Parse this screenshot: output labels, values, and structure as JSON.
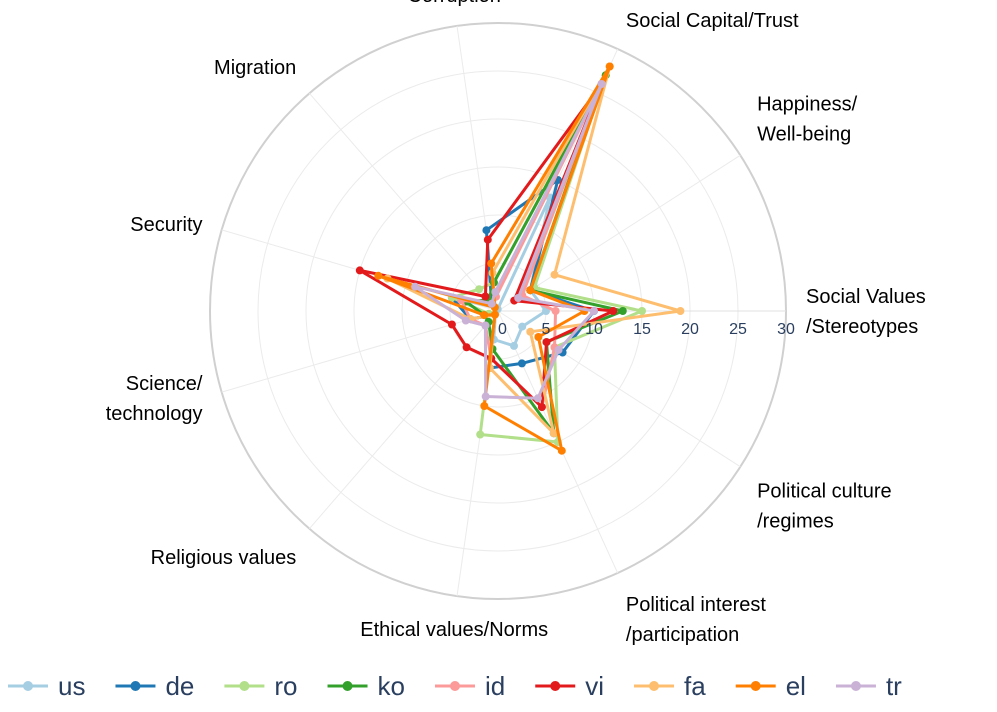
{
  "chart_data": {
    "type": "radar",
    "title": "",
    "axes": [
      {
        "name": "Social Values /Stereotypes",
        "lines": [
          "Social Values",
          "/Stereotypes"
        ]
      },
      {
        "name": "Happiness/ Well-being",
        "lines": [
          "Happiness/",
          "Well-being"
        ]
      },
      {
        "name": "Social Capital/Trust",
        "lines": [
          "Social Capital/Trust"
        ]
      },
      {
        "name": "Corruption",
        "lines": [
          "Corruption"
        ]
      },
      {
        "name": "Migration",
        "lines": [
          "Migration"
        ]
      },
      {
        "name": "Security",
        "lines": [
          "Security"
        ]
      },
      {
        "name": "Science/ technology",
        "lines": [
          "Science/",
          "technology"
        ]
      },
      {
        "name": "Religious values",
        "lines": [
          "Religious values"
        ]
      },
      {
        "name": "Ethical values/Norms",
        "lines": [
          "Ethical values/Norms"
        ]
      },
      {
        "name": "Political interest /participation",
        "lines": [
          "Political interest",
          "/participation"
        ]
      },
      {
        "name": "Political culture /regimes",
        "lines": [
          "Political culture",
          "/regimes"
        ]
      }
    ],
    "radial_range": [
      0,
      30
    ],
    "radial_ticks": [
      "0",
      "5",
      "10",
      "15",
      "20",
      "25",
      "30"
    ],
    "series": [
      {
        "name": "us",
        "color": "#a6cee3",
        "values": [
          5,
          4,
          13,
          0.2,
          0.5,
          5,
          3,
          0.5,
          3,
          4,
          3
        ]
      },
      {
        "name": "de",
        "color": "#1f78b4",
        "values": [
          10,
          4,
          15,
          8.5,
          1,
          5,
          3,
          0.5,
          6,
          6,
          8
        ]
      },
      {
        "name": "ro",
        "color": "#b2df8a",
        "values": [
          15,
          4.5,
          27,
          3,
          3,
          5,
          1,
          0.5,
          13,
          15,
          7
        ]
      },
      {
        "name": "ko",
        "color": "#33a02c",
        "values": [
          13,
          4,
          27,
          3,
          1.5,
          3.5,
          1.5,
          1.5,
          4,
          14,
          6
        ]
      },
      {
        "name": "id",
        "color": "#fb9a99",
        "values": [
          6,
          3,
          26,
          1.5,
          1,
          4,
          3,
          2,
          5,
          11,
          7
        ]
      },
      {
        "name": "vi",
        "color": "#e31a1c",
        "values": [
          12,
          2,
          26,
          7.5,
          2,
          15,
          5,
          5,
          5,
          11,
          6
        ]
      },
      {
        "name": "fa",
        "color": "#fdbf6f",
        "values": [
          19,
          7,
          28,
          4,
          0.5,
          12,
          3,
          0.5,
          6,
          14,
          4
        ]
      },
      {
        "name": "el",
        "color": "#ff7f00",
        "values": [
          9,
          4,
          28,
          5,
          0.5,
          13,
          1.5,
          0.5,
          10,
          16,
          5
        ]
      },
      {
        "name": "tr",
        "color": "#cab2d6",
        "values": [
          10,
          2.5,
          26,
          2,
          1,
          9,
          3.5,
          2,
          9,
          10,
          7.5
        ]
      }
    ],
    "legend": [
      "us",
      "de",
      "ro",
      "ko",
      "id",
      "vi",
      "fa",
      "el",
      "tr"
    ],
    "legend_position": "bottom",
    "grid": true
  }
}
